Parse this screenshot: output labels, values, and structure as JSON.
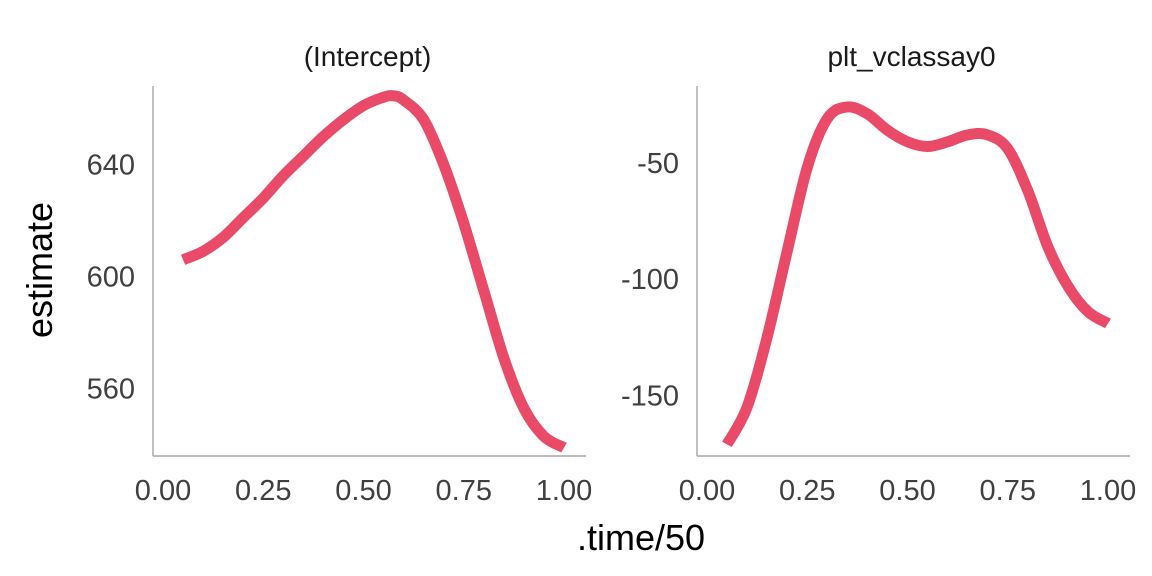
{
  "chart_data": {
    "type": "line",
    "xlabel": ".time/50",
    "ylabel": "estimate",
    "colors": {
      "line": "#e84a67",
      "axis": "#a6a6a6"
    },
    "panels": [
      {
        "title": "(Intercept)",
        "xlim": [
          0,
          1
        ],
        "ylim": [
          536,
          668
        ],
        "xticks": [
          0,
          0.25,
          0.5,
          0.75,
          1
        ],
        "xtick_labels": [
          "0.00",
          "0.25",
          "0.50",
          "0.75",
          "1.00"
        ],
        "yticks": [
          560,
          600,
          640
        ],
        "ytick_labels": [
          "560",
          "600",
          "640"
        ],
        "series": [
          {
            "x": [
              0.05,
              0.1,
              0.15,
              0.2,
              0.25,
              0.3,
              0.35,
              0.4,
              0.45,
              0.5,
              0.55,
              0.575,
              0.6,
              0.65,
              0.7,
              0.75,
              0.8,
              0.85,
              0.9,
              0.95,
              1.0
            ],
            "y": [
              606,
              609,
              614,
              621,
              628,
              636,
              643,
              650,
              656,
              661,
              664,
              664.5,
              663,
              656,
              640,
              619,
              595,
              571,
              553,
              543,
              539
            ]
          }
        ]
      },
      {
        "title": "plt_vclassay0",
        "xlim": [
          0,
          1
        ],
        "ylim": [
          -176,
          -17
        ],
        "xticks": [
          0,
          0.25,
          0.5,
          0.75,
          1
        ],
        "xtick_labels": [
          "0.00",
          "0.25",
          "0.50",
          "0.75",
          "1.00"
        ],
        "yticks": [
          -150,
          -100,
          -50
        ],
        "ytick_labels": [
          "-150",
          "-100",
          "-50"
        ],
        "series": [
          {
            "x": [
              0.05,
              0.1,
              0.15,
              0.2,
              0.25,
              0.3,
              0.35,
              0.4,
              0.45,
              0.5,
              0.55,
              0.6,
              0.65,
              0.7,
              0.75,
              0.8,
              0.85,
              0.9,
              0.95,
              1.0
            ],
            "y": [
              -171,
              -155,
              -125,
              -88,
              -52,
              -31,
              -26,
              -29,
              -36,
              -41,
              -43,
              -41,
              -38,
              -38,
              -44,
              -62,
              -86,
              -103,
              -114,
              -119
            ]
          }
        ]
      }
    ]
  }
}
